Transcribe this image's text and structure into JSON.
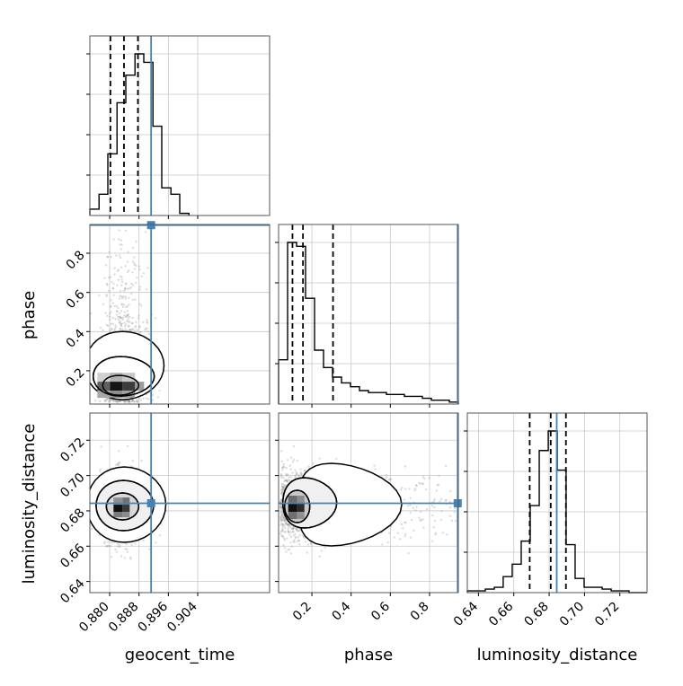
{
  "labels": {
    "geocent_time": "geocent_time",
    "phase": "phase",
    "luminosity_distance": "luminosity_distance"
  },
  "colors": {
    "truth": "#4682b4",
    "hist": "#000000",
    "grid": "#c8c8c8",
    "scatter": "#9a9a9a"
  },
  "chart_data": {
    "type": "corner",
    "parameters": [
      "geocent_time",
      "phase",
      "luminosity_distance"
    ],
    "truths": {
      "geocent_time": 0.8913,
      "phase": 0.9435,
      "luminosity_distance": 0.6843
    },
    "ranges": {
      "geocent_time": [
        0.8746,
        0.9236
      ],
      "phase": [
        0.0301,
        0.9468
      ],
      "luminosity_distance": [
        0.6337,
        0.7354
      ]
    },
    "ticks": {
      "geocent_time": [
        {
          "v": 0.88,
          "label": "0.880"
        },
        {
          "v": 0.888,
          "label": "0.888"
        },
        {
          "v": 0.896,
          "label": "0.896"
        },
        {
          "v": 0.904,
          "label": "0.904"
        }
      ],
      "phase": [
        {
          "v": 0.2,
          "label": "0.2"
        },
        {
          "v": 0.4,
          "label": "0.4"
        },
        {
          "v": 0.6,
          "label": "0.6"
        },
        {
          "v": 0.8,
          "label": "0.8"
        }
      ],
      "luminosity_distance": [
        {
          "v": 0.64,
          "label": "0.64"
        },
        {
          "v": 0.66,
          "label": "0.66"
        },
        {
          "v": 0.68,
          "label": "0.68"
        },
        {
          "v": 0.7,
          "label": "0.70"
        },
        {
          "v": 0.72,
          "label": "0.72"
        }
      ]
    },
    "marginals": {
      "geocent_time": {
        "bin_edges": [
          0.8746,
          0.8771,
          0.8795,
          0.882,
          0.8844,
          0.8869,
          0.8893,
          0.8918,
          0.8942,
          0.8967,
          0.8991,
          0.9016
        ],
        "counts": [
          0.03,
          0.1,
          0.29,
          0.53,
          0.66,
          0.76,
          0.72,
          0.42,
          0.13,
          0.1,
          0.01
        ],
        "quantiles": [
          0.8802,
          0.8839,
          0.8877
        ]
      },
      "phase": {
        "bin_edges": [
          0.0301,
          0.076,
          0.1218,
          0.1676,
          0.2135,
          0.2593,
          0.3051,
          0.351,
          0.3968,
          0.4427,
          0.4885,
          0.5343,
          0.5802,
          0.626,
          0.6718,
          0.7177,
          0.7635,
          0.8093,
          0.8552,
          0.901,
          0.9468
        ],
        "counts": [
          0.23,
          0.84,
          0.82,
          0.55,
          0.28,
          0.19,
          0.14,
          0.11,
          0.09,
          0.07,
          0.06,
          0.06,
          0.05,
          0.05,
          0.04,
          0.04,
          0.03,
          0.02,
          0.02,
          0.01
        ],
        "quantiles": [
          0.1009,
          0.1544,
          0.3077
        ]
      },
      "luminosity_distance": {
        "bin_edges": [
          0.6337,
          0.6388,
          0.6439,
          0.649,
          0.654,
          0.6591,
          0.6642,
          0.6693,
          0.6744,
          0.6795,
          0.6846,
          0.6896,
          0.6947,
          0.6998,
          0.7049,
          0.71,
          0.7151,
          0.7202,
          0.7252,
          0.7303,
          0.7354
        ],
        "counts": [
          0.01,
          0.01,
          0.02,
          0.03,
          0.09,
          0.16,
          0.29,
          0.49,
          0.8,
          0.91,
          0.69,
          0.27,
          0.08,
          0.03,
          0.03,
          0.02,
          0.01,
          0.01,
          0.0,
          0.0
        ],
        "quantiles": [
          0.669,
          0.6809,
          0.6895
        ]
      }
    },
    "joint_2d": [
      {
        "x": "geocent_time",
        "y": "phase",
        "center": [
          0.8835,
          0.135
        ]
      },
      {
        "x": "geocent_time",
        "y": "luminosity_distance",
        "center": [
          0.8835,
          0.6825
        ]
      },
      {
        "x": "phase",
        "y": "luminosity_distance",
        "center": [
          0.125,
          0.6825
        ]
      }
    ]
  }
}
